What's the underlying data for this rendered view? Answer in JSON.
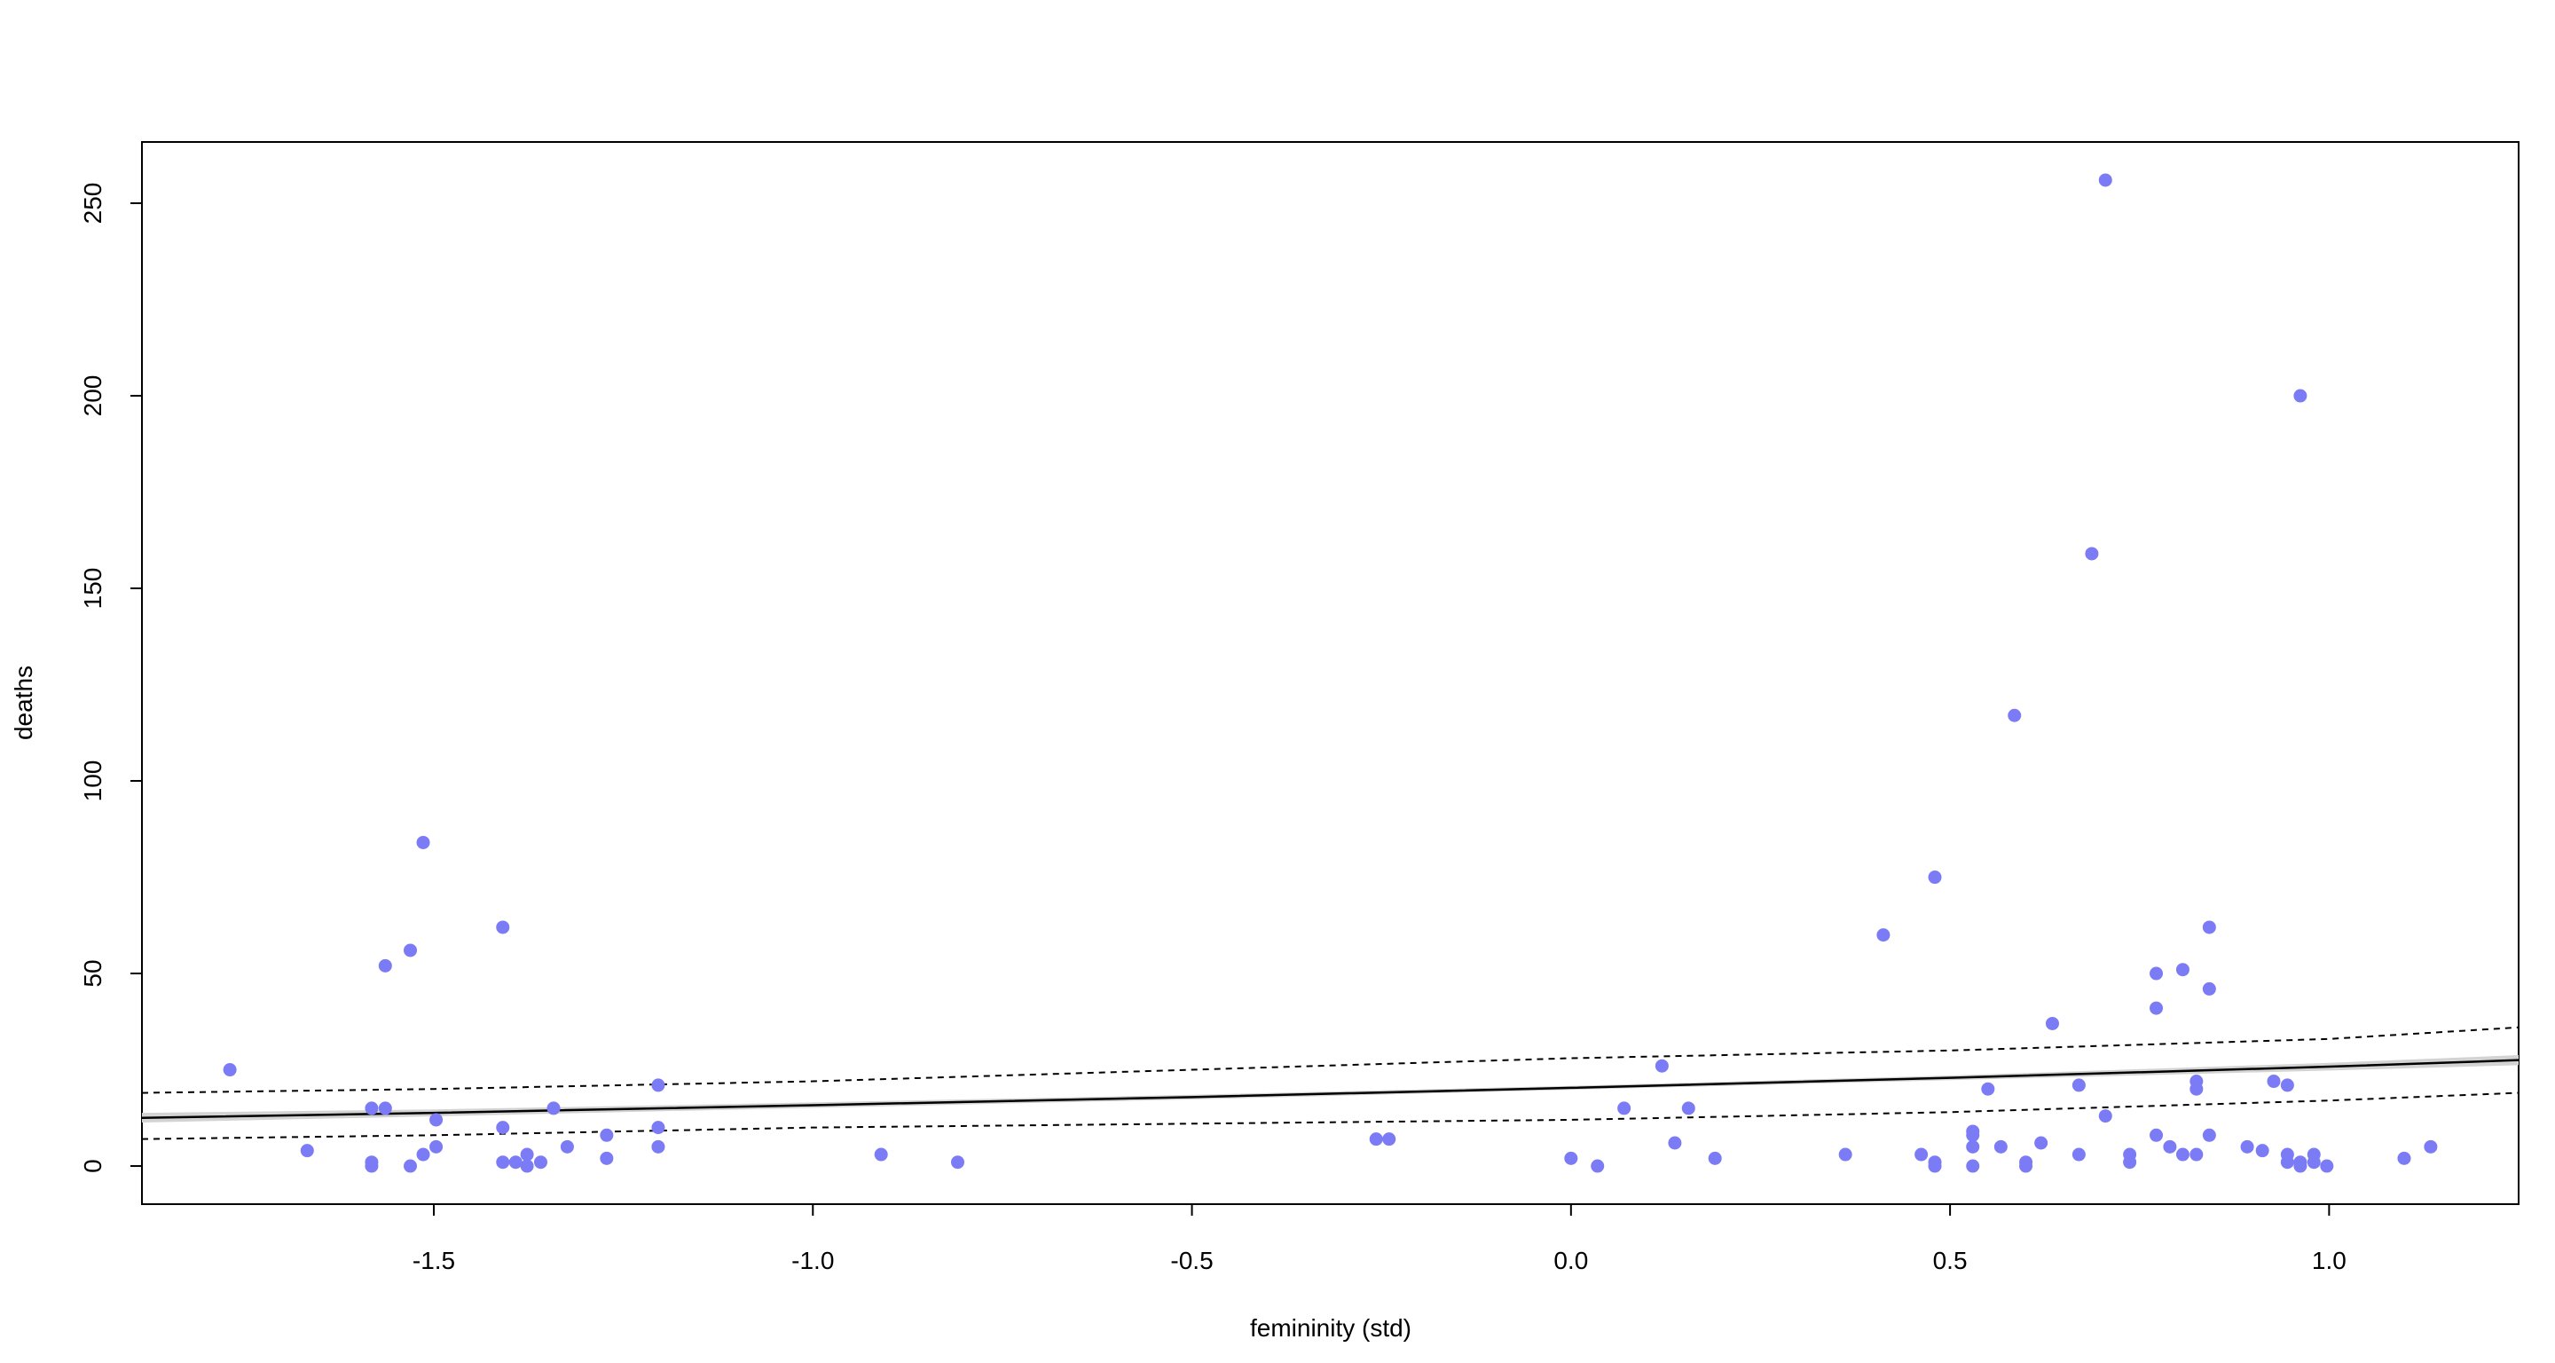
{
  "chart_data": {
    "type": "scatter",
    "x_label": "femininity (std)",
    "y_label": "deaths",
    "xlim": [
      -1.885,
      1.25
    ],
    "ylim": [
      -9.9,
      265.9
    ],
    "xticks": [
      -1.5,
      {
        "value": -1.0,
        "label": "-1.0"
      },
      -0.5,
      {
        "value": 0.0,
        "label": "0.0"
      },
      0.5,
      {
        "value": 1.0,
        "label": "1.0"
      }
    ],
    "yticks": [
      0,
      50,
      100,
      150,
      200,
      250
    ],
    "color": "#7b7bf5",
    "x": [
      -1.769,
      -1.667,
      -1.582,
      -1.582,
      -1.582,
      -1.564,
      -1.564,
      -1.531,
      -1.531,
      -1.514,
      -1.514,
      -1.497,
      -1.497,
      -1.409,
      -1.409,
      -1.409,
      -1.392,
      -1.377,
      -1.377,
      -1.359,
      -1.342,
      -1.324,
      -1.272,
      -1.272,
      -1.204,
      -1.204,
      -1.204,
      -0.91,
      -0.809,
      -0.257,
      -0.24,
      0.0,
      0.035,
      0.07,
      0.12,
      0.137,
      0.155,
      0.19,
      0.362,
      0.412,
      0.462,
      0.48,
      0.48,
      0.48,
      0.53,
      0.53,
      0.53,
      0.53,
      0.55,
      0.567,
      0.585,
      0.6,
      0.6,
      0.62,
      0.635,
      0.67,
      0.67,
      0.687,
      0.705,
      0.705,
      0.737,
      0.737,
      0.772,
      0.772,
      0.772,
      0.79,
      0.807,
      0.807,
      0.825,
      0.825,
      0.825,
      0.842,
      0.842,
      0.842,
      0.892,
      0.912,
      0.927,
      0.945,
      0.945,
      0.945,
      0.962,
      0.962,
      0.962,
      0.98,
      0.98,
      0.997,
      1.099,
      1.134
    ],
    "values": [
      25,
      4,
      1,
      0,
      15,
      15,
      52,
      56,
      0,
      84,
      3,
      12,
      5,
      62,
      10,
      1,
      1,
      3,
      0,
      1,
      15,
      5,
      8,
      2,
      21,
      10,
      5,
      3,
      1,
      7,
      7,
      2,
      0,
      15,
      26,
      6,
      15,
      2,
      3,
      60,
      3,
      75,
      1,
      0,
      9,
      8,
      5,
      0,
      20,
      5,
      117,
      1,
      0,
      6,
      37,
      21,
      3,
      159,
      13,
      256,
      3,
      1,
      50,
      41,
      8,
      5,
      51,
      3,
      22,
      20,
      3,
      62,
      46,
      8,
      5,
      4,
      22,
      21,
      3,
      1,
      200,
      1,
      0,
      3,
      1,
      0,
      2,
      5
    ],
    "fit": {
      "x": [
        -1.885,
        -1.5,
        -1.0,
        -0.5,
        0.0,
        0.5,
        1.0,
        1.25
      ],
      "mean": [
        12.5,
        13.8,
        15.8,
        17.9,
        20.3,
        22.9,
        25.8,
        27.5
      ],
      "mean_lo": [
        11.3,
        12.9,
        15.1,
        17.3,
        19.8,
        22.3,
        24.8,
        26.2
      ],
      "mean_hi": [
        13.8,
        14.7,
        16.5,
        18.5,
        20.8,
        23.5,
        26.8,
        28.8
      ],
      "pred_lo": [
        7,
        8,
        10,
        11,
        12,
        14,
        17,
        19
      ],
      "pred_hi": [
        19,
        20,
        22,
        25,
        28,
        30,
        33,
        36
      ]
    }
  }
}
